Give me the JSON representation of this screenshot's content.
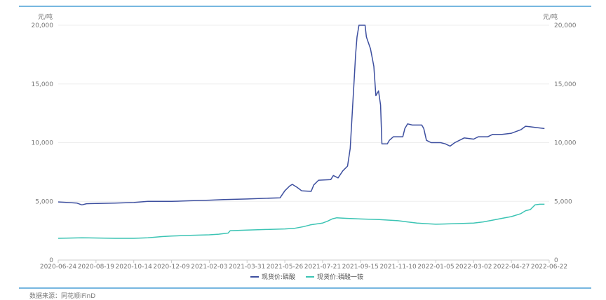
{
  "chart_data": {
    "type": "line",
    "unit_left": "元/吨",
    "unit_right": "元/吨",
    "ylim": [
      0,
      20000
    ],
    "y_ticks": [
      0,
      5000,
      10000,
      15000,
      20000
    ],
    "y_tick_labels": [
      "0",
      "5,000",
      "10,000",
      "15,000",
      "20,000"
    ],
    "x_ticks": [
      "2020-06-24",
      "2020-08-19",
      "2020-10-14",
      "2020-12-09",
      "2021-02-03",
      "2021-03-31",
      "2021-05-26",
      "2021-07-21",
      "2021-09-15",
      "2021-11-10",
      "2022-01-05",
      "2022-03-02",
      "2022-04-27",
      "2022-06-22"
    ],
    "series": [
      {
        "name": "现货价:磷酸",
        "color": "#3d4f9f",
        "points": [
          [
            "2020-06-24",
            4950
          ],
          [
            "2020-07-08",
            4900
          ],
          [
            "2020-07-22",
            4850
          ],
          [
            "2020-07-29",
            4700
          ],
          [
            "2020-08-05",
            4800
          ],
          [
            "2020-09-16",
            4850
          ],
          [
            "2020-10-14",
            4900
          ],
          [
            "2020-11-04",
            5000
          ],
          [
            "2020-12-09",
            5000
          ],
          [
            "2021-01-06",
            5050
          ],
          [
            "2021-02-03",
            5100
          ],
          [
            "2021-02-24",
            5150
          ],
          [
            "2021-03-31",
            5200
          ],
          [
            "2021-04-21",
            5250
          ],
          [
            "2021-05-19",
            5300
          ],
          [
            "2021-05-26",
            5900
          ],
          [
            "2021-06-02",
            6300
          ],
          [
            "2021-06-06",
            6450
          ],
          [
            "2021-06-13",
            6200
          ],
          [
            "2021-06-20",
            5900
          ],
          [
            "2021-07-04",
            5850
          ],
          [
            "2021-07-08",
            6400
          ],
          [
            "2021-07-15",
            6800
          ],
          [
            "2021-08-02",
            6850
          ],
          [
            "2021-08-06",
            7200
          ],
          [
            "2021-08-13",
            7000
          ],
          [
            "2021-08-20",
            7600
          ],
          [
            "2021-08-27",
            8000
          ],
          [
            "2021-08-31",
            9500
          ],
          [
            "2021-09-03",
            12500
          ],
          [
            "2021-09-06",
            15500
          ],
          [
            "2021-09-08",
            17500
          ],
          [
            "2021-09-10",
            19000
          ],
          [
            "2021-09-13",
            20000
          ],
          [
            "2021-09-22",
            20000
          ],
          [
            "2021-09-24",
            19000
          ],
          [
            "2021-09-30",
            18000
          ],
          [
            "2021-10-05",
            16500
          ],
          [
            "2021-10-08",
            14000
          ],
          [
            "2021-10-12",
            14400
          ],
          [
            "2021-10-15",
            13200
          ],
          [
            "2021-10-17",
            9900
          ],
          [
            "2021-10-25",
            9900
          ],
          [
            "2021-10-28",
            10200
          ],
          [
            "2021-11-03",
            10500
          ],
          [
            "2021-11-17",
            10500
          ],
          [
            "2021-11-20",
            11200
          ],
          [
            "2021-11-24",
            11600
          ],
          [
            "2021-12-01",
            11500
          ],
          [
            "2021-12-15",
            11500
          ],
          [
            "2021-12-18",
            11200
          ],
          [
            "2021-12-22",
            10200
          ],
          [
            "2021-12-29",
            10000
          ],
          [
            "2022-01-12",
            10000
          ],
          [
            "2022-01-19",
            9900
          ],
          [
            "2022-01-26",
            9700
          ],
          [
            "2022-02-02",
            10000
          ],
          [
            "2022-02-09",
            10200
          ],
          [
            "2022-02-16",
            10400
          ],
          [
            "2022-03-02",
            10300
          ],
          [
            "2022-03-09",
            10500
          ],
          [
            "2022-03-23",
            10500
          ],
          [
            "2022-03-30",
            10700
          ],
          [
            "2022-04-13",
            10700
          ],
          [
            "2022-04-27",
            10800
          ],
          [
            "2022-05-11",
            11100
          ],
          [
            "2022-05-18",
            11400
          ],
          [
            "2022-05-25",
            11350
          ],
          [
            "2022-06-01",
            11300
          ],
          [
            "2022-06-15",
            11200
          ]
        ]
      },
      {
        "name": "现货价:磷酸一铵",
        "color": "#3cc4b4",
        "points": [
          [
            "2020-06-24",
            1850
          ],
          [
            "2020-07-29",
            1900
          ],
          [
            "2020-09-16",
            1850
          ],
          [
            "2020-10-14",
            1850
          ],
          [
            "2020-11-04",
            1900
          ],
          [
            "2020-11-25",
            2000
          ],
          [
            "2020-12-09",
            2050
          ],
          [
            "2021-01-06",
            2100
          ],
          [
            "2021-02-03",
            2150
          ],
          [
            "2021-02-17",
            2200
          ],
          [
            "2021-03-03",
            2300
          ],
          [
            "2021-03-06",
            2500
          ],
          [
            "2021-03-31",
            2550
          ],
          [
            "2021-04-28",
            2600
          ],
          [
            "2021-05-26",
            2650
          ],
          [
            "2021-06-09",
            2700
          ],
          [
            "2021-06-23",
            2850
          ],
          [
            "2021-07-03",
            3000
          ],
          [
            "2021-07-21",
            3150
          ],
          [
            "2021-07-28",
            3300
          ],
          [
            "2021-08-04",
            3500
          ],
          [
            "2021-08-11",
            3600
          ],
          [
            "2021-08-25",
            3550
          ],
          [
            "2021-09-15",
            3500
          ],
          [
            "2021-10-13",
            3450
          ],
          [
            "2021-11-10",
            3350
          ],
          [
            "2021-11-24",
            3250
          ],
          [
            "2021-12-08",
            3150
          ],
          [
            "2021-12-22",
            3100
          ],
          [
            "2022-01-05",
            3050
          ],
          [
            "2022-02-02",
            3100
          ],
          [
            "2022-03-02",
            3150
          ],
          [
            "2022-03-16",
            3250
          ],
          [
            "2022-03-30",
            3400
          ],
          [
            "2022-04-13",
            3550
          ],
          [
            "2022-04-27",
            3700
          ],
          [
            "2022-05-11",
            3950
          ],
          [
            "2022-05-18",
            4200
          ],
          [
            "2022-05-25",
            4300
          ],
          [
            "2022-06-01",
            4700
          ],
          [
            "2022-06-08",
            4750
          ],
          [
            "2022-06-15",
            4750
          ]
        ]
      }
    ]
  },
  "footer": {
    "source": "数据来源：同花顺iFinD"
  }
}
